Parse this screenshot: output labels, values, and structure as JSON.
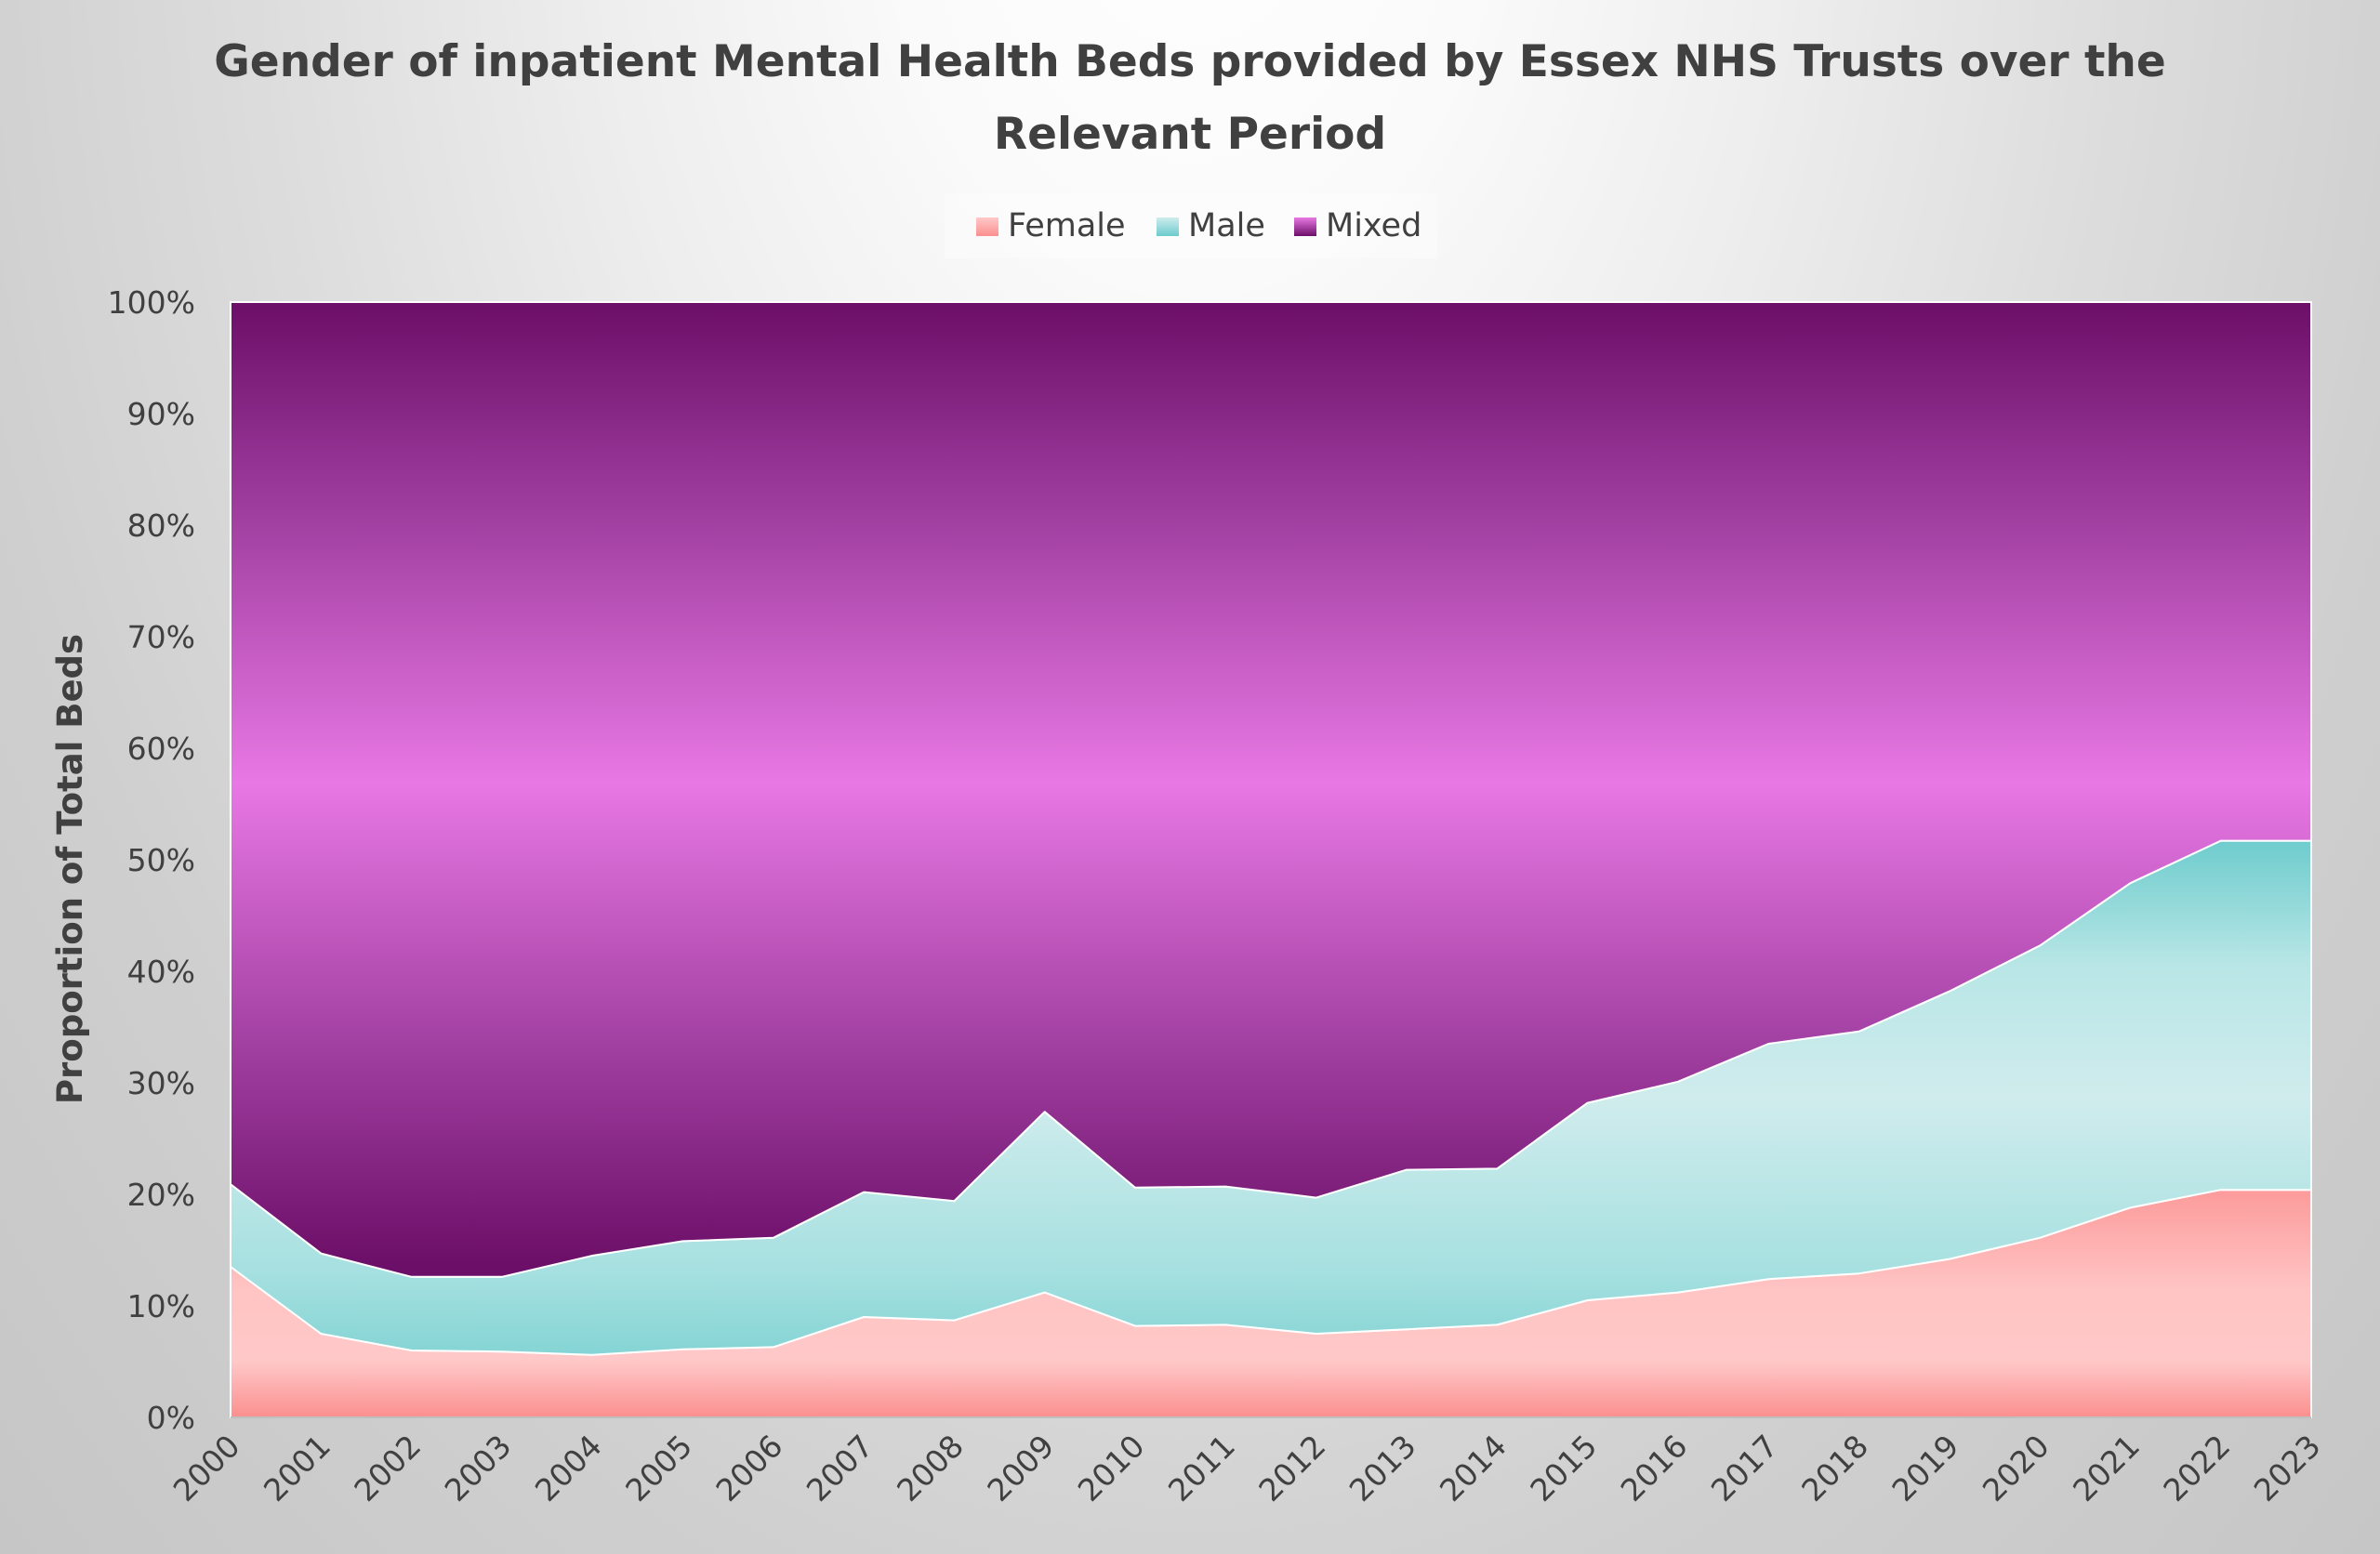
{
  "chart_data": {
    "type": "area",
    "stacked": "percent",
    "title_line1": "Gender of inpatient Mental Health Beds provided by Essex NHS Trusts over the",
    "title_line2": "Relevant Period",
    "xlabel": "",
    "ylabel": "Proportion of Total Beds",
    "ylim": [
      0,
      100
    ],
    "y_ticks": [
      "0%",
      "10%",
      "20%",
      "30%",
      "40%",
      "50%",
      "60%",
      "70%",
      "80%",
      "90%",
      "100%"
    ],
    "legend_position": "top-center",
    "x": [
      "2000",
      "2001",
      "2002",
      "2003",
      "2004",
      "2005",
      "2006",
      "2007",
      "2008",
      "2009",
      "2010",
      "2011",
      "2012",
      "2013",
      "2014",
      "2015",
      "2016",
      "2017",
      "2018",
      "2019",
      "2020",
      "2021",
      "2022",
      "2023"
    ],
    "series": [
      {
        "name": "Female",
        "color": "#f9a8a8",
        "values": [
          13.5,
          7.5,
          6.0,
          5.9,
          5.6,
          6.1,
          6.3,
          9.0,
          8.7,
          11.2,
          8.2,
          8.3,
          7.5,
          7.9,
          8.3,
          10.5,
          11.2,
          12.4,
          12.9,
          14.2,
          16.1,
          18.8,
          20.4,
          20.4
        ]
      },
      {
        "name": "Male",
        "color": "#7fcfd0",
        "values": [
          7.4,
          7.2,
          6.6,
          6.7,
          8.9,
          9.7,
          9.8,
          11.2,
          10.7,
          16.2,
          12.4,
          12.4,
          12.2,
          14.3,
          14.0,
          17.7,
          18.9,
          21.1,
          21.7,
          24.0,
          26.2,
          29.1,
          31.3,
          31.3
        ]
      },
      {
        "name": "Mixed",
        "color": "#d060d8",
        "values": [
          79.1,
          85.3,
          87.4,
          87.4,
          85.5,
          84.2,
          83.9,
          79.8,
          80.6,
          72.6,
          79.4,
          79.3,
          80.3,
          77.8,
          77.7,
          71.8,
          69.9,
          66.5,
          65.4,
          61.8,
          57.7,
          52.1,
          48.3,
          48.3
        ]
      }
    ]
  }
}
